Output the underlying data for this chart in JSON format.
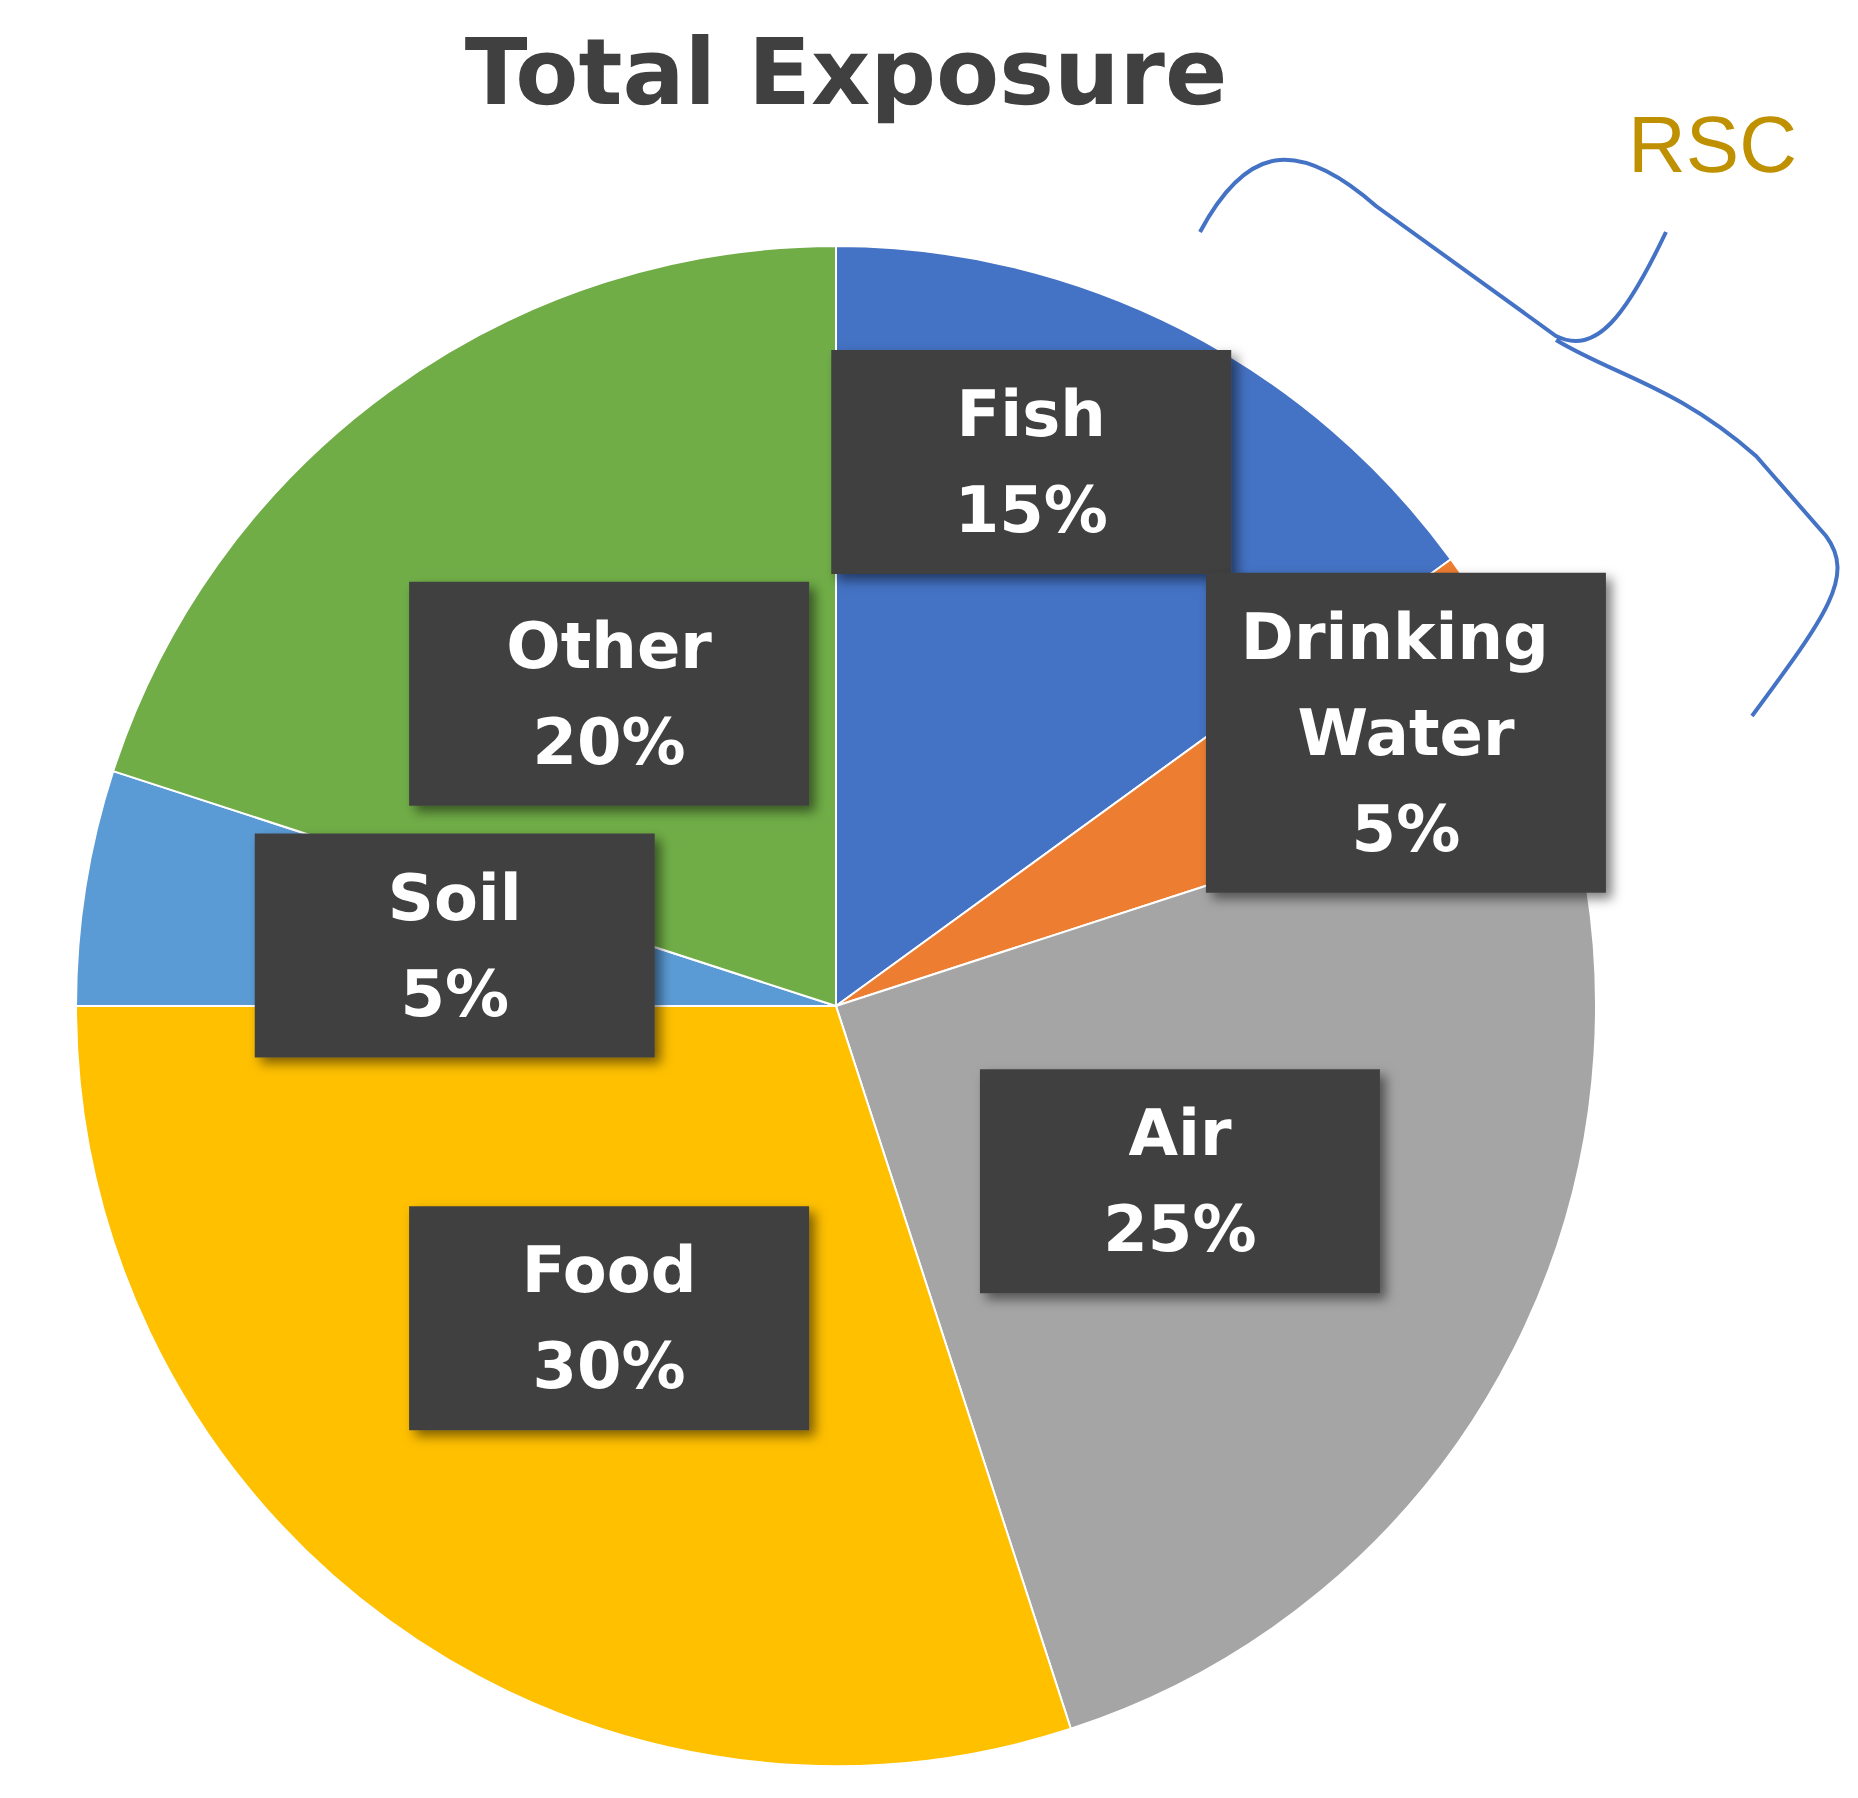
{
  "chart_data": {
    "type": "pie",
    "title": "Total Exposure",
    "categories": [
      "Fish",
      "Drinking Water",
      "Air",
      "Food",
      "Soil",
      "Other"
    ],
    "values": [
      15,
      5,
      25,
      30,
      5,
      20
    ],
    "colors": [
      "#4472c4",
      "#ed7d31",
      "#a5a5a5",
      "#ffc000",
      "#5b9bd5",
      "#70ad47"
    ],
    "value_labels": [
      "15%",
      "5%",
      "25%",
      "30%",
      "5%",
      "20%"
    ],
    "annotations": [
      "RSC"
    ]
  }
}
